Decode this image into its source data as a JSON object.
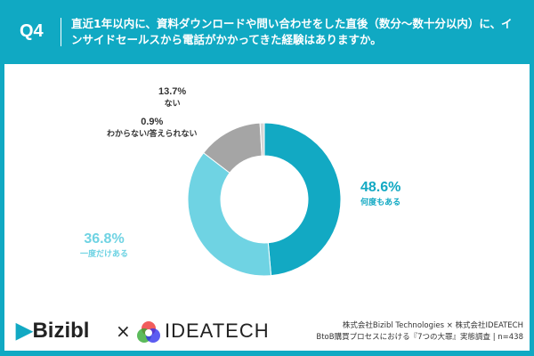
{
  "header": {
    "q": "Q4",
    "title": "直近1年以内に、資料ダウンロードや問い合わせをした直後（数分〜数十分以内）に、インサイドセールスから電話がかかってきた経験はありますか。"
  },
  "chart_data": {
    "type": "pie",
    "donut": true,
    "title": "直近1年以内に、資料ダウンロードや問い合わせをした直後（数分〜数十分以内）に、インサイドセールスから電話がかかってきた経験はありますか。",
    "slices": [
      {
        "label": "何度もある",
        "value": 48.6,
        "pct": "48.6%",
        "color": "#12a9c3"
      },
      {
        "label": "一度だけある",
        "value": 36.8,
        "pct": "36.8%",
        "color": "#6fd3e3"
      },
      {
        "label": "ない",
        "value": 13.7,
        "pct": "13.7%",
        "color": "#a5a5a5"
      },
      {
        "label": "わからない/答えられない",
        "value": 0.9,
        "pct": "0.9%",
        "color": "#d6d6d6"
      }
    ]
  },
  "footer": {
    "brand1": "Bizibl",
    "times": "×",
    "brand2": "IDEATECH",
    "credit1": "株式会社Bizibl Technologies × 株式会社IDEATECH",
    "credit2": "BtoB購買プロセスにおける『7つの大罪』実態調査 | n=438"
  }
}
